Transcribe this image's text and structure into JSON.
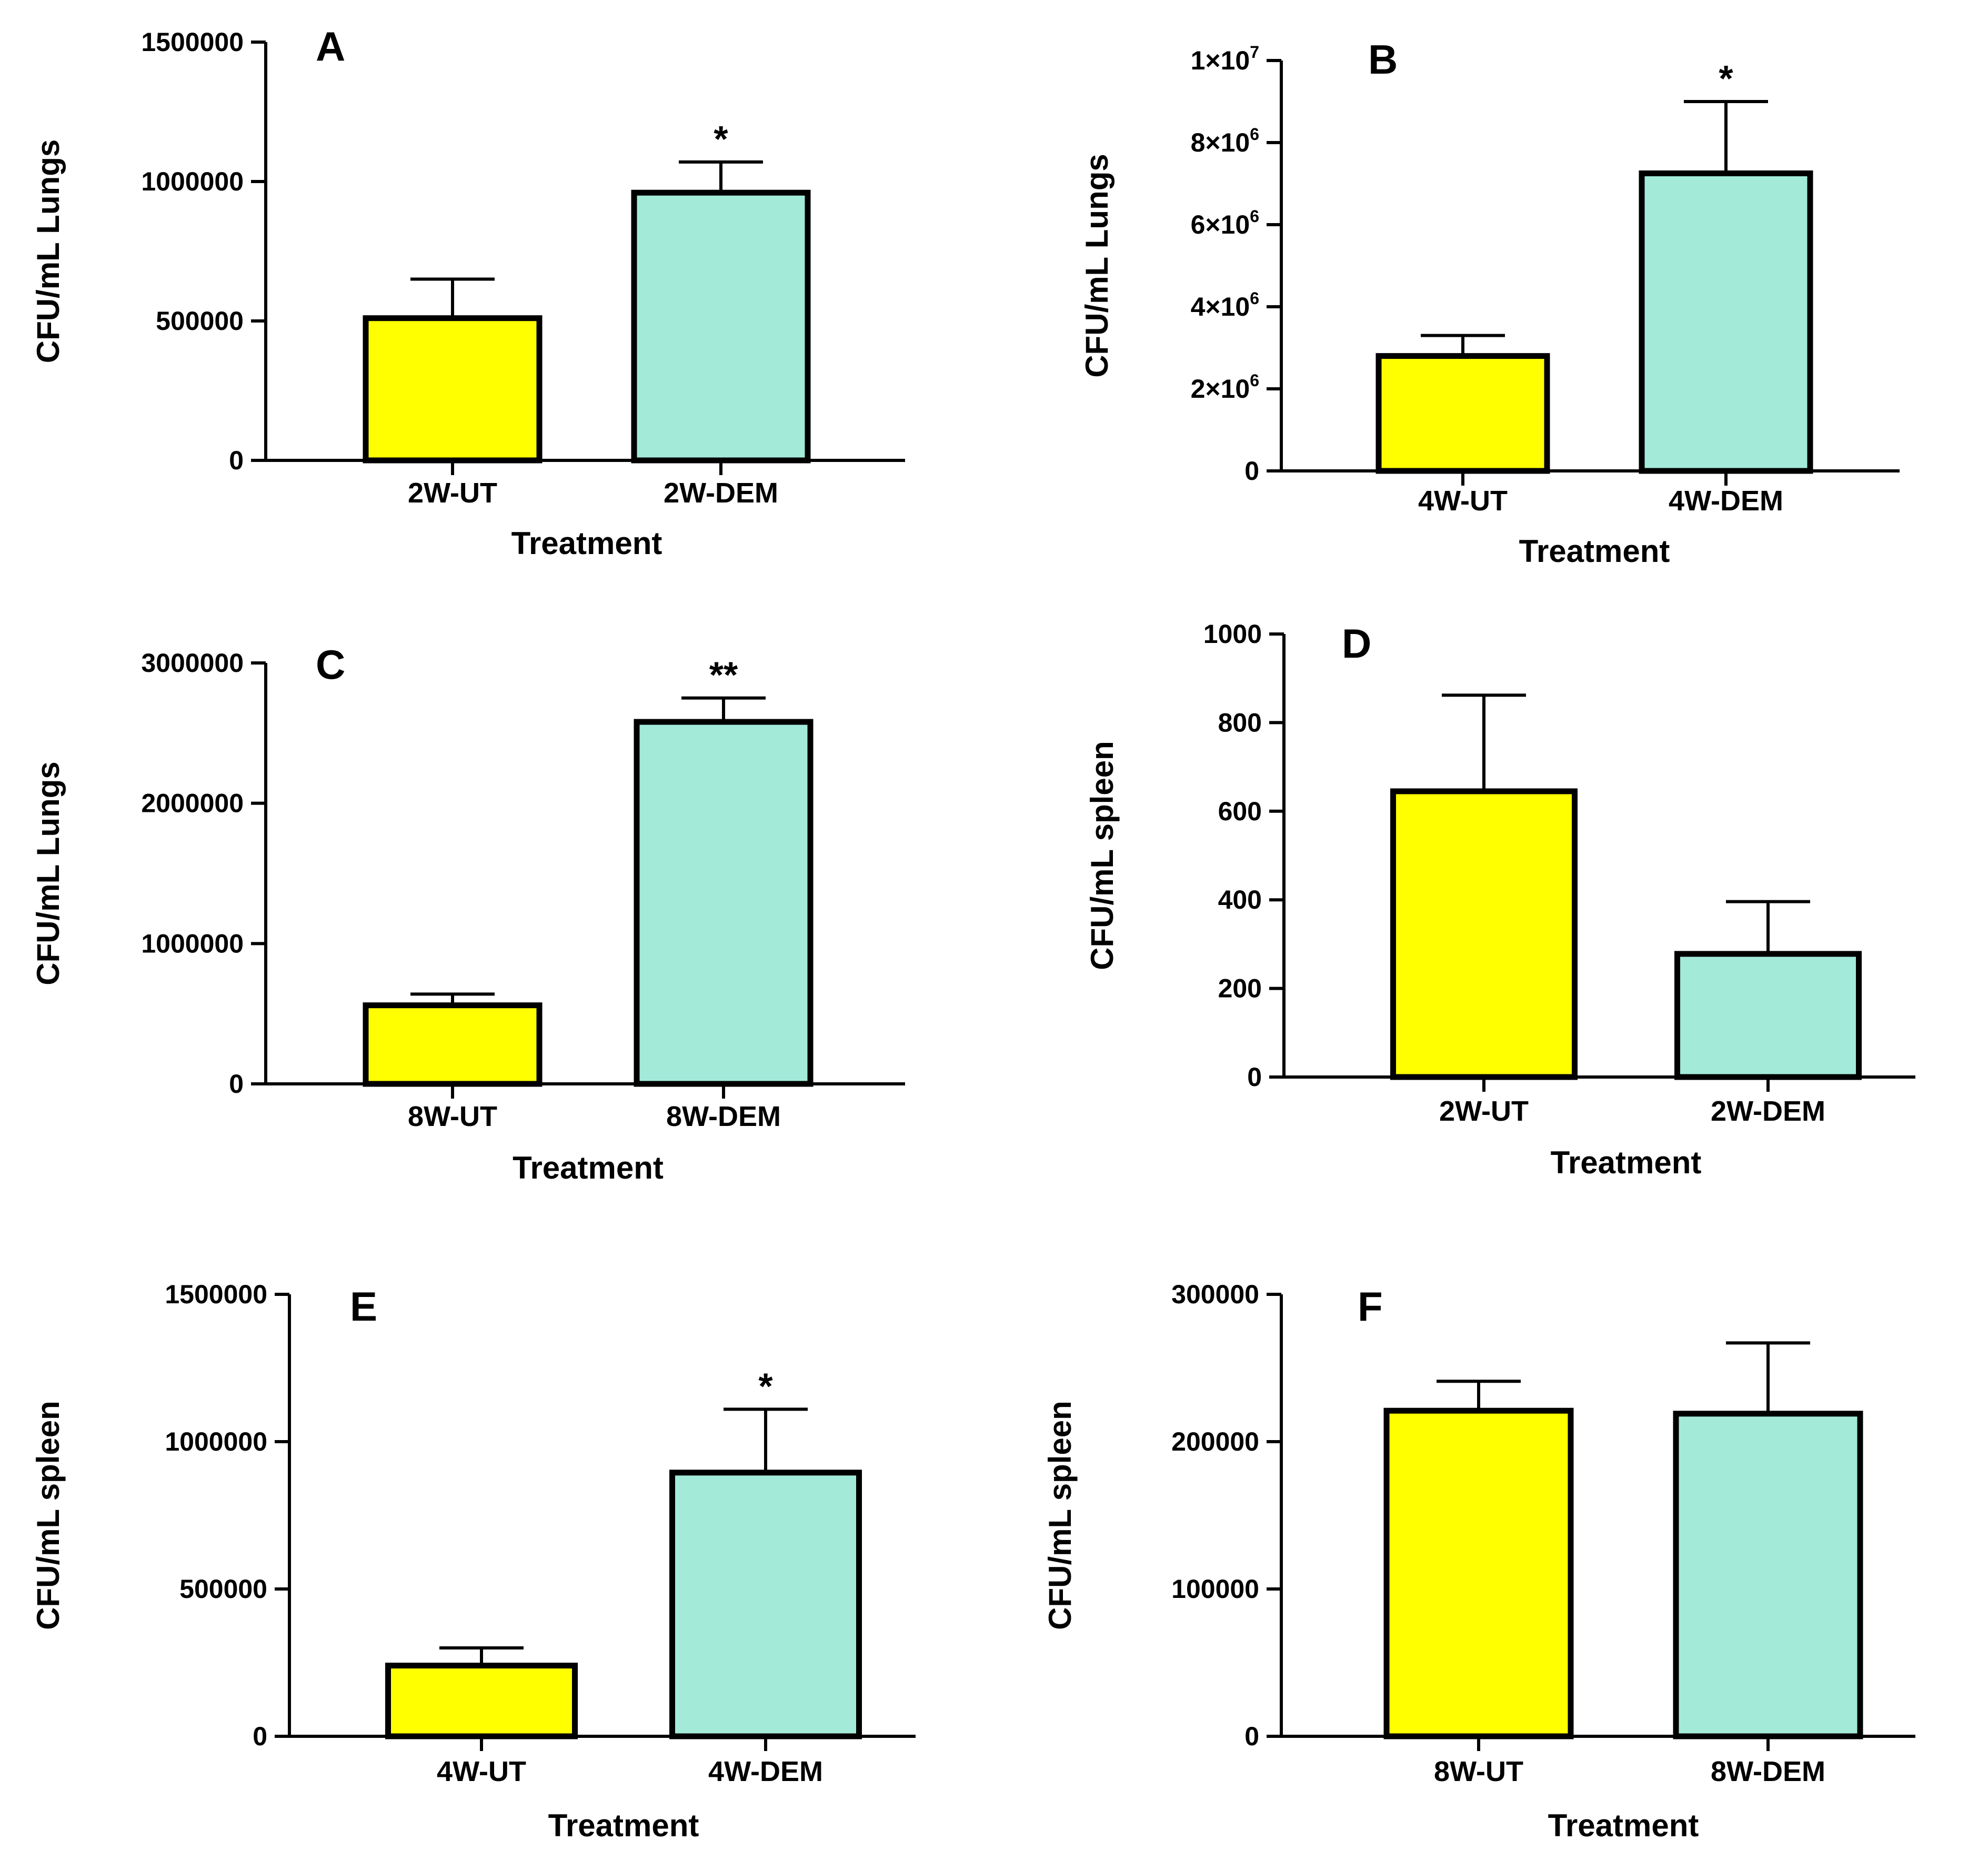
{
  "chart_data": [
    {
      "type": "bar",
      "panel": "A",
      "ylabel": "CFU/mL Lungs",
      "xlabel": "Treatment",
      "categories": [
        "2W-UT",
        "2W-DEM"
      ],
      "values": [
        510000,
        960000
      ],
      "errors": [
        140000,
        110000
      ],
      "significance": [
        "",
        "*"
      ],
      "ylim": [
        0,
        1500000
      ],
      "yticks": [
        0,
        500000,
        1000000,
        1500000
      ],
      "ytick_labels": [
        "0",
        "500000",
        "1000000",
        "1500000"
      ]
    },
    {
      "type": "bar",
      "panel": "B",
      "ylabel": "CFU/mL Lungs",
      "xlabel": "Treatment",
      "categories": [
        "4W-UT",
        "4W-DEM"
      ],
      "values": [
        2800000,
        7250000
      ],
      "errors": [
        500000,
        1750000
      ],
      "significance": [
        "",
        "*"
      ],
      "ylim": [
        0,
        10000000
      ],
      "yticks": [
        0,
        2000000,
        4000000,
        6000000,
        8000000,
        10000000
      ],
      "ytick_labels": [
        "0",
        "2×10|6",
        "4×10|6",
        "6×10|6",
        "8×10|6",
        "1×10|7"
      ]
    },
    {
      "type": "bar",
      "panel": "C",
      "ylabel": "CFU/mL Lungs",
      "xlabel": "Treatment",
      "categories": [
        "8W-UT",
        "8W-DEM"
      ],
      "values": [
        560000,
        2580000
      ],
      "errors": [
        80000,
        170000
      ],
      "significance": [
        "",
        "**"
      ],
      "ylim": [
        0,
        3000000
      ],
      "yticks": [
        0,
        1000000,
        2000000,
        3000000
      ],
      "ytick_labels": [
        "0",
        "1000000",
        "2000000",
        "3000000"
      ]
    },
    {
      "type": "bar",
      "panel": "D",
      "ylabel": "CFU/mL spleen",
      "xlabel": "Treatment",
      "categories": [
        "2W-UT",
        "2W-DEM"
      ],
      "values": [
        645,
        278
      ],
      "errors": [
        217,
        118
      ],
      "significance": [
        "",
        ""
      ],
      "ylim": [
        0,
        1000
      ],
      "yticks": [
        0,
        200,
        400,
        600,
        800,
        1000
      ],
      "ytick_labels": [
        "0",
        "200",
        "400",
        "600",
        "800",
        "1000"
      ]
    },
    {
      "type": "bar",
      "panel": "E",
      "ylabel": "CFU/mL spleen",
      "xlabel": "Treatment",
      "categories": [
        "4W-UT",
        "4W-DEM"
      ],
      "values": [
        240000,
        895000
      ],
      "errors": [
        60000,
        215000
      ],
      "significance": [
        "",
        "*"
      ],
      "ylim": [
        0,
        1500000
      ],
      "yticks": [
        0,
        500000,
        1000000,
        1500000
      ],
      "ytick_labels": [
        "0",
        "500000",
        "1000000",
        "1500000"
      ]
    },
    {
      "type": "bar",
      "panel": "F",
      "ylabel": "CFU/mL spleen",
      "xlabel": "Treatment",
      "categories": [
        "8W-UT",
        "8W-DEM"
      ],
      "values": [
        221000,
        219000
      ],
      "errors": [
        20000,
        48000
      ],
      "significance": [
        "",
        ""
      ],
      "ylim": [
        0,
        300000
      ],
      "yticks": [
        0,
        100000,
        200000,
        300000
      ],
      "ytick_labels": [
        "0",
        "100000",
        "200000",
        "300000"
      ]
    }
  ],
  "colors": {
    "untreated_bar": "#ffff00",
    "treated_bar": "#a3ead9",
    "axis": "#000000"
  }
}
